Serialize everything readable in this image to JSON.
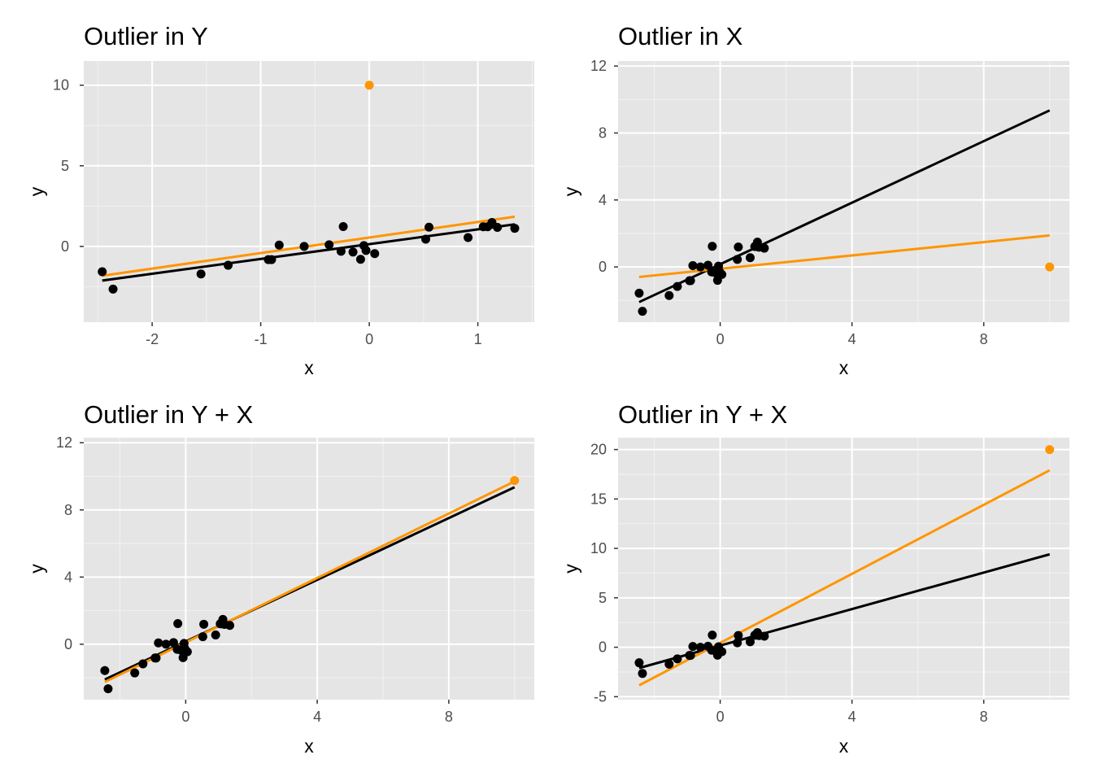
{
  "colors": {
    "panel_bg": "#e5e5e5",
    "grid_major": "#ffffff",
    "grid_minor": "#f2f2f2",
    "points": "#000000",
    "outlier": "#ff9500",
    "fit_without_outlier": "#000000",
    "fit_with_outlier": "#ff9500"
  },
  "chart_data": [
    {
      "type": "scatter",
      "title": "Outlier in Y",
      "xlabel": "x",
      "ylabel": "y",
      "xlim": [
        -2.63,
        1.52
      ],
      "ylim": [
        -4.7,
        11.5
      ],
      "xticks": [
        -2,
        -1,
        0,
        1
      ],
      "xtick_labels": [
        "-2",
        "-1",
        "0",
        "1"
      ],
      "yticks": [
        0,
        5,
        10
      ],
      "ytick_labels": [
        "0",
        "5",
        "10"
      ],
      "grid": true,
      "points": [
        [
          -2.46,
          -1.57
        ],
        [
          -2.36,
          -2.65
        ],
        [
          -1.55,
          -1.71
        ],
        [
          -1.3,
          -1.17
        ],
        [
          -0.93,
          -0.82
        ],
        [
          -0.9,
          -0.82
        ],
        [
          -0.83,
          0.08
        ],
        [
          -0.6,
          0.0
        ],
        [
          -0.37,
          0.1
        ],
        [
          -0.26,
          -0.3
        ],
        [
          -0.24,
          1.23
        ],
        [
          -0.15,
          -0.35
        ],
        [
          -0.08,
          -0.8
        ],
        [
          -0.05,
          0.05
        ],
        [
          -0.03,
          -0.25
        ],
        [
          0.05,
          -0.45
        ],
        [
          0.52,
          0.45
        ],
        [
          0.55,
          1.19
        ],
        [
          0.91,
          0.55
        ],
        [
          1.05,
          1.22
        ],
        [
          1.09,
          1.22
        ],
        [
          1.13,
          1.48
        ],
        [
          1.18,
          1.18
        ],
        [
          1.34,
          1.12
        ]
      ],
      "outlier": [
        0,
        10
      ],
      "fit_without_outlier": {
        "x": [
          -2.46,
          1.34
        ],
        "y": [
          -2.12,
          1.37
        ]
      },
      "fit_with_outlier": {
        "x": [
          -2.46,
          1.34
        ],
        "y": [
          -1.82,
          1.84
        ]
      }
    },
    {
      "type": "scatter",
      "title": "Outlier in X",
      "xlabel": "x",
      "ylabel": "y",
      "xlim": [
        -3.1,
        10.6
      ],
      "ylim": [
        -3.3,
        12.3
      ],
      "xticks": [
        0,
        4,
        8
      ],
      "xtick_labels": [
        "0",
        "4",
        "8"
      ],
      "yticks": [
        0,
        4,
        8,
        12
      ],
      "ytick_labels": [
        "0",
        "4",
        "8",
        "12"
      ],
      "grid": true,
      "points": [
        [
          -2.46,
          -1.57
        ],
        [
          -2.36,
          -2.65
        ],
        [
          -1.55,
          -1.71
        ],
        [
          -1.3,
          -1.17
        ],
        [
          -0.93,
          -0.82
        ],
        [
          -0.9,
          -0.82
        ],
        [
          -0.83,
          0.08
        ],
        [
          -0.6,
          0.0
        ],
        [
          -0.37,
          0.1
        ],
        [
          -0.26,
          -0.3
        ],
        [
          -0.24,
          1.23
        ],
        [
          -0.15,
          -0.35
        ],
        [
          -0.08,
          -0.8
        ],
        [
          -0.05,
          0.05
        ],
        [
          -0.03,
          -0.25
        ],
        [
          0.05,
          -0.45
        ],
        [
          0.52,
          0.45
        ],
        [
          0.55,
          1.19
        ],
        [
          0.91,
          0.55
        ],
        [
          1.05,
          1.22
        ],
        [
          1.09,
          1.22
        ],
        [
          1.13,
          1.48
        ],
        [
          1.18,
          1.18
        ],
        [
          1.34,
          1.12
        ]
      ],
      "outlier": [
        10,
        0
      ],
      "fit_without_outlier": {
        "x": [
          -2.46,
          10
        ],
        "y": [
          -2.1,
          9.35
        ]
      },
      "fit_with_outlier": {
        "x": [
          -2.46,
          10
        ],
        "y": [
          -0.6,
          1.88
        ]
      }
    },
    {
      "type": "scatter",
      "title": "Outlier in Y + X",
      "xlabel": "x",
      "ylabel": "y",
      "xlim": [
        -3.1,
        10.6
      ],
      "ylim": [
        -3.3,
        12.3
      ],
      "xticks": [
        0,
        4,
        8
      ],
      "xtick_labels": [
        "0",
        "4",
        "8"
      ],
      "yticks": [
        0,
        4,
        8,
        12
      ],
      "ytick_labels": [
        "0",
        "4",
        "8",
        "12"
      ],
      "grid": true,
      "points": [
        [
          -2.46,
          -1.57
        ],
        [
          -2.36,
          -2.65
        ],
        [
          -1.55,
          -1.71
        ],
        [
          -1.3,
          -1.17
        ],
        [
          -0.93,
          -0.82
        ],
        [
          -0.9,
          -0.82
        ],
        [
          -0.83,
          0.08
        ],
        [
          -0.6,
          0.0
        ],
        [
          -0.37,
          0.1
        ],
        [
          -0.26,
          -0.3
        ],
        [
          -0.24,
          1.23
        ],
        [
          -0.15,
          -0.35
        ],
        [
          -0.08,
          -0.8
        ],
        [
          -0.05,
          0.05
        ],
        [
          -0.03,
          -0.25
        ],
        [
          0.05,
          -0.45
        ],
        [
          0.52,
          0.45
        ],
        [
          0.55,
          1.19
        ],
        [
          0.91,
          0.55
        ],
        [
          1.05,
          1.22
        ],
        [
          1.09,
          1.22
        ],
        [
          1.13,
          1.48
        ],
        [
          1.18,
          1.18
        ],
        [
          1.34,
          1.12
        ]
      ],
      "outlier": [
        10,
        9.75
      ],
      "fit_without_outlier": {
        "x": [
          -2.46,
          10
        ],
        "y": [
          -2.1,
          9.35
        ]
      },
      "fit_with_outlier": {
        "x": [
          -2.46,
          10
        ],
        "y": [
          -2.25,
          9.7
        ]
      }
    },
    {
      "type": "scatter",
      "title": "Outlier in Y + X",
      "xlabel": "x",
      "ylabel": "y",
      "xlim": [
        -3.1,
        10.6
      ],
      "ylim": [
        -5.3,
        21.2
      ],
      "xticks": [
        0,
        4,
        8
      ],
      "xtick_labels": [
        "0",
        "4",
        "8"
      ],
      "yticks": [
        -5,
        0,
        5,
        10,
        15,
        20
      ],
      "ytick_labels": [
        "-5",
        "0",
        "5",
        "10",
        "15",
        "20"
      ],
      "grid": true,
      "points": [
        [
          -2.46,
          -1.57
        ],
        [
          -2.36,
          -2.65
        ],
        [
          -1.55,
          -1.71
        ],
        [
          -1.3,
          -1.17
        ],
        [
          -0.93,
          -0.82
        ],
        [
          -0.9,
          -0.82
        ],
        [
          -0.83,
          0.08
        ],
        [
          -0.6,
          0.0
        ],
        [
          -0.37,
          0.1
        ],
        [
          -0.26,
          -0.3
        ],
        [
          -0.24,
          1.23
        ],
        [
          -0.15,
          -0.35
        ],
        [
          -0.08,
          -0.8
        ],
        [
          -0.05,
          0.05
        ],
        [
          -0.03,
          -0.25
        ],
        [
          0.05,
          -0.45
        ],
        [
          0.52,
          0.45
        ],
        [
          0.55,
          1.19
        ],
        [
          0.91,
          0.55
        ],
        [
          1.05,
          1.22
        ],
        [
          1.09,
          1.22
        ],
        [
          1.13,
          1.48
        ],
        [
          1.18,
          1.18
        ],
        [
          1.34,
          1.12
        ]
      ],
      "outlier": [
        10,
        20
      ],
      "fit_without_outlier": {
        "x": [
          -2.46,
          10
        ],
        "y": [
          -2.1,
          9.4
        ]
      },
      "fit_with_outlier": {
        "x": [
          -2.46,
          10
        ],
        "y": [
          -3.85,
          17.9
        ]
      }
    }
  ]
}
